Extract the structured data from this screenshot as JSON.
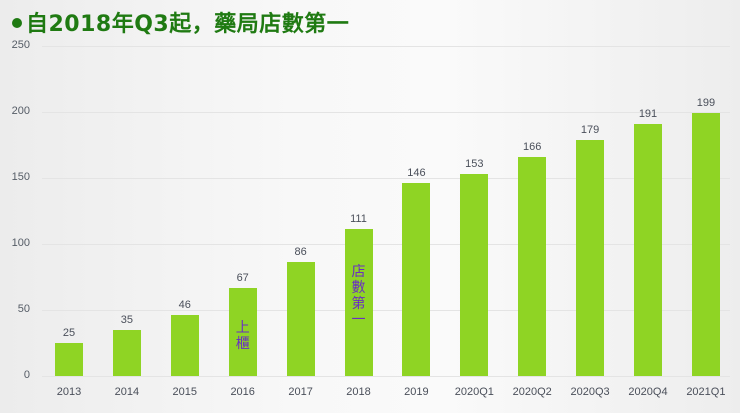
{
  "title": "自2018年Q3起，藥局店數第一",
  "colors": {
    "title": "#1f7a12",
    "bar": "#8fd424",
    "annotation": "#6a2fc2",
    "label": "#4a4f5a"
  },
  "y_ticks": [
    "0",
    "50",
    "100",
    "150",
    "200",
    "250"
  ],
  "categories": [
    "2013",
    "2014",
    "2015",
    "2016",
    "2017",
    "2018",
    "2019",
    "2020Q1",
    "2020Q2",
    "2020Q3",
    "2020Q4",
    "2021Q1"
  ],
  "value_labels": [
    "25",
    "35",
    "46",
    "67",
    "86",
    "111",
    "146",
    "153",
    "166",
    "179",
    "191",
    "199"
  ],
  "annotations": {
    "listed": "上\n櫃",
    "store_count_first": "店\n數\n第\n一"
  },
  "chart_data": {
    "type": "bar",
    "title": "自2018年Q3起，藥局店數第一",
    "xlabel": "",
    "ylabel": "",
    "categories": [
      "2013",
      "2014",
      "2015",
      "2016",
      "2017",
      "2018",
      "2019",
      "2020Q1",
      "2020Q2",
      "2020Q3",
      "2020Q4",
      "2021Q1"
    ],
    "values": [
      25,
      35,
      46,
      67,
      86,
      111,
      146,
      153,
      166,
      179,
      191,
      199
    ],
    "ylim": [
      0,
      250
    ],
    "yticks": [
      0,
      50,
      100,
      150,
      200,
      250
    ],
    "grid": true,
    "data_labels": true,
    "annotations": [
      {
        "category": "2016",
        "text": "上櫃"
      },
      {
        "category": "2018",
        "text": "店數第一"
      }
    ]
  }
}
